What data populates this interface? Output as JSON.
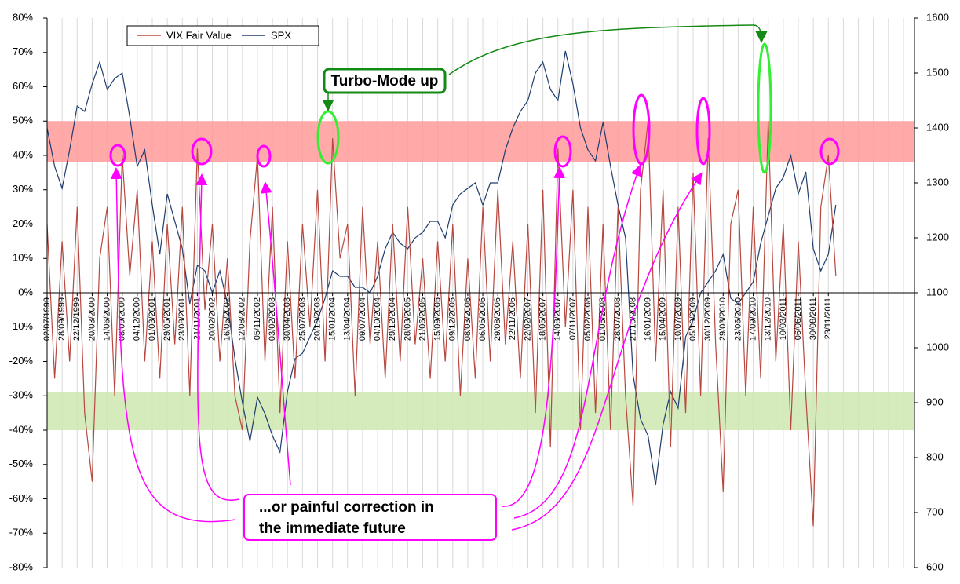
{
  "chart_data": {
    "type": "line",
    "categories": [
      "02/07/1999",
      null,
      "28/09/1999",
      null,
      "22/12/1999",
      null,
      "20/03/2000",
      null,
      "14/06/2000",
      null,
      "08/09/2000",
      null,
      "04/12/2000",
      null,
      "01/03/2001",
      null,
      "29/05/2001",
      null,
      "23/08/2001",
      null,
      "21/11/2001",
      null,
      "20/02/2002",
      null,
      "16/05/2002",
      null,
      "12/08/2002",
      null,
      "05/11/2002",
      null,
      "03/02/2003",
      null,
      "30/04/2003",
      null,
      "25/07/2003",
      null,
      "20/10/2003",
      null,
      "15/01/2004",
      null,
      "13/04/2004",
      null,
      "09/07/2004",
      null,
      "04/10/2004",
      null,
      "29/12/2004",
      null,
      "28/03/2005",
      null,
      "21/06/2005",
      null,
      "15/09/2005",
      null,
      "09/12/2005",
      null,
      "08/03/2006",
      null,
      "06/06/2006",
      null,
      "29/08/2006",
      null,
      "22/11/2006",
      null,
      "22/02/2007",
      null,
      "18/05/2007",
      null,
      "14/08/2007",
      null,
      "07/11/2007",
      null,
      "05/02/2008",
      null,
      "01/05/2008",
      null,
      "28/07/2008",
      null,
      "21/10/2008",
      null,
      "16/01/2009",
      null,
      "15/04/2009",
      null,
      "10/07/2009",
      null,
      "05/10/2009",
      null,
      "30/12/2009",
      null,
      "29/03/2010",
      null,
      "23/06/2010",
      null,
      "17/09/2010",
      null,
      "13/12/2010",
      null,
      "10/03/2011",
      null,
      "06/06/2011",
      null,
      "30/08/2011",
      null,
      "23/11/2011",
      null
    ],
    "series": [
      {
        "name": "VIX Fair Value",
        "color": "#b8473f",
        "values": [
          20,
          -25,
          15,
          -20,
          25,
          -35,
          -55,
          10,
          25,
          -30,
          40,
          5,
          30,
          -20,
          15,
          -25,
          20,
          -15,
          25,
          -30,
          42,
          -5,
          20,
          -20,
          10,
          -30,
          -40,
          15,
          40,
          -20,
          25,
          -35,
          15,
          -25,
          20,
          -10,
          30,
          -20,
          45,
          10,
          20,
          -30,
          25,
          -15,
          15,
          -25,
          20,
          -20,
          25,
          -15,
          10,
          -25,
          15,
          -20,
          20,
          -30,
          10,
          -25,
          25,
          -20,
          30,
          -15,
          15,
          -25,
          20,
          -35,
          30,
          -45,
          42,
          -10,
          30,
          -40,
          25,
          -35,
          20,
          -40,
          25,
          -30,
          -62,
          30,
          50,
          -20,
          30,
          -45,
          25,
          -35,
          35,
          -30,
          45,
          -15,
          -58,
          20,
          30,
          -30,
          25,
          -25,
          50,
          -20,
          20,
          -40,
          15,
          -30,
          -68,
          25,
          40,
          5
        ]
      },
      {
        "name": "SPX",
        "color": "#1f3d6d",
        "axis": "y2",
        "values": [
          1400,
          1330,
          1290,
          1360,
          1440,
          1430,
          1480,
          1520,
          1470,
          1490,
          1500,
          1420,
          1330,
          1360,
          1260,
          1170,
          1280,
          1230,
          1180,
          1080,
          1150,
          1140,
          1100,
          1140,
          1080,
          980,
          900,
          830,
          910,
          880,
          840,
          810,
          920,
          980,
          990,
          1020,
          1050,
          1090,
          1140,
          1130,
          1130,
          1110,
          1110,
          1100,
          1130,
          1180,
          1210,
          1190,
          1180,
          1200,
          1210,
          1230,
          1230,
          1200,
          1260,
          1280,
          1290,
          1300,
          1260,
          1300,
          1300,
          1360,
          1400,
          1430,
          1450,
          1500,
          1520,
          1470,
          1450,
          1540,
          1480,
          1400,
          1360,
          1340,
          1410,
          1330,
          1260,
          1200,
          950,
          870,
          840,
          750,
          860,
          920,
          890,
          1020,
          1050,
          1100,
          1120,
          1140,
          1170,
          1090,
          1080,
          1100,
          1120,
          1190,
          1240,
          1290,
          1310,
          1350,
          1280,
          1320,
          1180,
          1140,
          1170,
          1260
        ]
      }
    ],
    "ylim": [
      -80,
      80
    ],
    "yticks": [
      {
        "value": -80,
        "label": "-80%"
      },
      {
        "value": -70,
        "label": "-70%"
      },
      {
        "value": -60,
        "label": "-60%"
      },
      {
        "value": -50,
        "label": "-50%"
      },
      {
        "value": -40,
        "label": "-40%"
      },
      {
        "value": -30,
        "label": "-30%"
      },
      {
        "value": -20,
        "label": "-20%"
      },
      {
        "value": -10,
        "label": "-10%"
      },
      {
        "value": 0,
        "label": "0%"
      },
      {
        "value": 10,
        "label": "10%"
      },
      {
        "value": 20,
        "label": "20%"
      },
      {
        "value": 30,
        "label": "30%"
      },
      {
        "value": 40,
        "label": "40%"
      },
      {
        "value": 50,
        "label": "50%"
      },
      {
        "value": 60,
        "label": "60%"
      },
      {
        "value": 70,
        "label": "70%"
      },
      {
        "value": 80,
        "label": "80%"
      }
    ],
    "y2lim": [
      600,
      1600
    ],
    "y2ticks": [
      600,
      700,
      800,
      900,
      1000,
      1100,
      1200,
      1300,
      1400,
      1500,
      1600
    ],
    "bands": [
      {
        "from": 38,
        "to": 50,
        "color": "#ff9a9a"
      },
      {
        "from": -29,
        "to": -40,
        "color": "#cfe8b0"
      }
    ],
    "annotations": [
      {
        "text": "Turbo-Mode up",
        "color": "#138a13"
      },
      {
        "lines": [
          "...or painful correction in",
          "the immediate future"
        ],
        "color": "#ff00ff"
      }
    ]
  }
}
